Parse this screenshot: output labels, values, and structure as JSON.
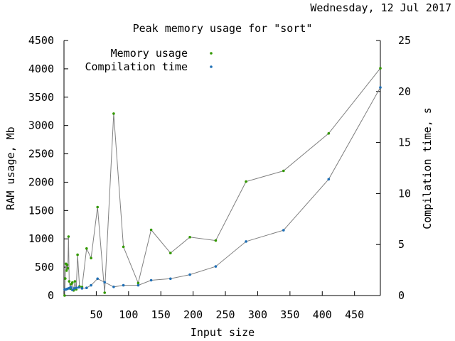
{
  "chart_data": {
    "type": "line",
    "timestamp": "Wednesday, 12 Jul 2017",
    "title": "Peak memory usage for \"sort\"",
    "xlabel": "Input size",
    "ylabel": "RAM usage, Mb",
    "y2label": "Compilation time, s",
    "xlim": [
      0,
      490
    ],
    "xticks": [
      50,
      100,
      150,
      200,
      250,
      300,
      350,
      400,
      450
    ],
    "ylim": [
      0,
      4500
    ],
    "yticks": [
      0,
      500,
      1000,
      1500,
      2000,
      2500,
      3000,
      3500,
      4000,
      4500
    ],
    "y2lim": [
      0,
      25
    ],
    "y2ticks": [
      0,
      5,
      10,
      15,
      20,
      25
    ],
    "grid": false,
    "legend_position": "top-left",
    "line_color": "#808080",
    "series": [
      {
        "name": "Memory usage",
        "axis": "left",
        "color": "#339900",
        "points": [
          [
            1,
            0
          ],
          [
            2,
            300
          ],
          [
            3,
            560
          ],
          [
            4,
            440
          ],
          [
            5,
            540
          ],
          [
            6,
            480
          ],
          [
            7,
            1040
          ],
          [
            8,
            250
          ],
          [
            10,
            120
          ],
          [
            11,
            200
          ],
          [
            13,
            230
          ],
          [
            15,
            90
          ],
          [
            17,
            250
          ],
          [
            19,
            110
          ],
          [
            21,
            720
          ],
          [
            24,
            160
          ],
          [
            28,
            150
          ],
          [
            35,
            830
          ],
          [
            42,
            660
          ],
          [
            52,
            1560
          ],
          [
            63,
            50
          ],
          [
            77,
            3210
          ],
          [
            92,
            860
          ],
          [
            115,
            220
          ],
          [
            135,
            1160
          ],
          [
            165,
            750
          ],
          [
            195,
            1030
          ],
          [
            235,
            970
          ],
          [
            282,
            2010
          ],
          [
            340,
            2200
          ],
          [
            410,
            2860
          ],
          [
            490,
            4010
          ]
        ]
      },
      {
        "name": "Compilation time",
        "axis": "right",
        "color": "#1f6fb5",
        "points": [
          [
            1,
            0.6
          ],
          [
            3,
            0.6
          ],
          [
            5,
            0.65
          ],
          [
            7,
            0.7
          ],
          [
            9,
            0.75
          ],
          [
            11,
            0.8
          ],
          [
            13,
            0.55
          ],
          [
            16,
            0.7
          ],
          [
            19,
            0.75
          ],
          [
            23,
            0.8
          ],
          [
            28,
            0.7
          ],
          [
            35,
            0.75
          ],
          [
            42,
            1.0
          ],
          [
            52,
            1.65
          ],
          [
            63,
            1.3
          ],
          [
            77,
            0.85
          ],
          [
            92,
            1.0
          ],
          [
            115,
            1.0
          ],
          [
            135,
            1.5
          ],
          [
            165,
            1.65
          ],
          [
            195,
            2.05
          ],
          [
            235,
            2.85
          ],
          [
            282,
            5.3
          ],
          [
            340,
            6.4
          ],
          [
            410,
            11.4
          ],
          [
            490,
            20.4
          ]
        ]
      }
    ]
  }
}
